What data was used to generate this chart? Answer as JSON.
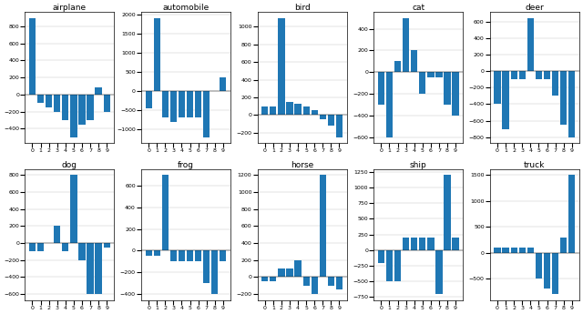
{
  "bar_color": "#1f77b4",
  "layout": [
    [
      "airplane",
      "automobile",
      "bird",
      "cat",
      "deer"
    ],
    [
      "dog",
      "frog",
      "horse",
      "ship",
      "truck"
    ]
  ],
  "data": {
    "airplane": [
      900,
      -100,
      -150,
      -200,
      -300,
      -500,
      -350,
      -300,
      80,
      -200
    ],
    "automobile": [
      -450,
      1900,
      -700,
      -800,
      -700,
      -700,
      -700,
      -1200,
      0,
      350
    ],
    "bird": [
      100,
      100,
      1100,
      150,
      130,
      100,
      50,
      -50,
      -120,
      -250
    ],
    "cat": [
      -300,
      -600,
      100,
      500,
      200,
      -200,
      -50,
      -50,
      -300,
      -400
    ],
    "deer": [
      -400,
      -700,
      -100,
      -100,
      650,
      -100,
      -100,
      -300,
      -650,
      -800
    ],
    "dog": [
      -100,
      -100,
      0,
      200,
      -100,
      800,
      -200,
      -600,
      -600,
      -50
    ],
    "frog": [
      -50,
      -50,
      700,
      -100,
      -100,
      -100,
      -100,
      -300,
      -400,
      -100
    ],
    "horse": [
      -50,
      -50,
      100,
      100,
      200,
      -100,
      -200,
      1200,
      -100,
      -150
    ],
    "ship": [
      -200,
      -500,
      -500,
      200,
      200,
      200,
      200,
      -700,
      1200,
      200
    ],
    "truck": [
      100,
      100,
      100,
      100,
      100,
      -500,
      -700,
      -800,
      300,
      1500
    ]
  }
}
